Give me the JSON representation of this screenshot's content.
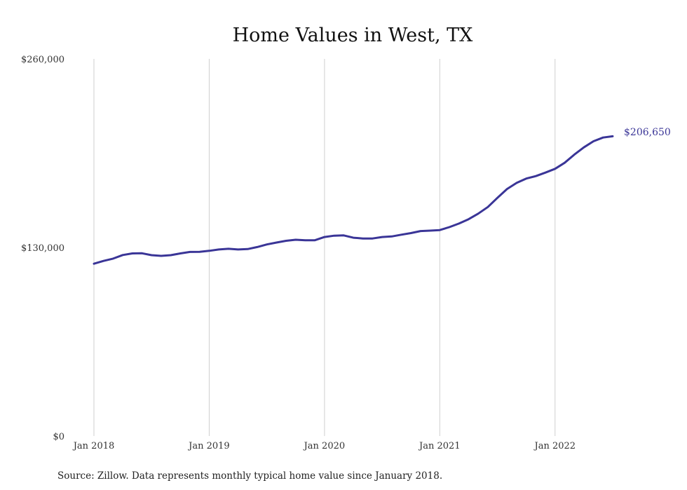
{
  "chart_data": {
    "type": "line",
    "title": "Home Values in West, TX",
    "xlabel": "",
    "ylabel": "",
    "source_note": "Source: Zillow. Data represents monthly typical home value since January 2018.",
    "ylim": [
      0,
      260000
    ],
    "yticks": [
      {
        "value": 0,
        "label": "$0"
      },
      {
        "value": 130000,
        "label": "$130,000"
      },
      {
        "value": 260000,
        "label": "$260,000"
      }
    ],
    "xlim": [
      "2018-01",
      "2022-07"
    ],
    "xticks": [
      {
        "x": "2018-01",
        "label": "Jan 2018"
      },
      {
        "x": "2019-01",
        "label": "Jan 2019"
      },
      {
        "x": "2020-01",
        "label": "Jan 2020"
      },
      {
        "x": "2021-01",
        "label": "Jan 2021"
      },
      {
        "x": "2022-01",
        "label": "Jan 2022"
      }
    ],
    "grid": {
      "vertical": true,
      "horizontal": false
    },
    "line_color": "#3a3597",
    "end_label": "$206,650",
    "x": [
      "2018-01",
      "2018-02",
      "2018-03",
      "2018-04",
      "2018-05",
      "2018-06",
      "2018-07",
      "2018-08",
      "2018-09",
      "2018-10",
      "2018-11",
      "2018-12",
      "2019-01",
      "2019-02",
      "2019-03",
      "2019-04",
      "2019-05",
      "2019-06",
      "2019-07",
      "2019-08",
      "2019-09",
      "2019-10",
      "2019-11",
      "2019-12",
      "2020-01",
      "2020-02",
      "2020-03",
      "2020-04",
      "2020-05",
      "2020-06",
      "2020-07",
      "2020-08",
      "2020-09",
      "2020-10",
      "2020-11",
      "2020-12",
      "2021-01",
      "2021-02",
      "2021-03",
      "2021-04",
      "2021-05",
      "2021-06",
      "2021-07",
      "2021-08",
      "2021-09",
      "2021-10",
      "2021-11",
      "2021-12",
      "2022-01",
      "2022-02",
      "2022-03",
      "2022-04",
      "2022-05",
      "2022-06",
      "2022-07"
    ],
    "series": [
      {
        "values": [
          118800,
          120700,
          122300,
          124800,
          125900,
          126000,
          124700,
          124200,
          124700,
          125900,
          126900,
          127000,
          127700,
          128600,
          129100,
          128600,
          128900,
          130300,
          132100,
          133400,
          134600,
          135300,
          135000,
          135000,
          137200,
          138100,
          138300,
          136700,
          136200,
          136200,
          137200,
          137600,
          138800,
          139900,
          141300,
          141600,
          142000,
          144000,
          146500,
          149500,
          153300,
          157900,
          164200,
          170300,
          174500,
          177500,
          179200,
          181600,
          184200,
          188400,
          194000,
          199000,
          203200,
          205800,
          206650
        ]
      }
    ]
  }
}
